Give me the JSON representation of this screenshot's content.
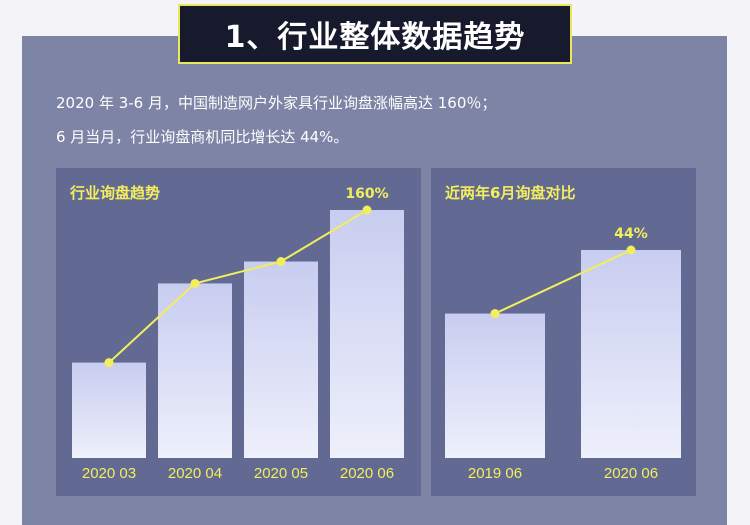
{
  "header": {
    "title": "1、行业整体数据趋势"
  },
  "intro": {
    "line1": "2020 年 3-6 月，中国制造网户外家具行业询盘涨幅高达 160％；",
    "line2": "6 月当月，行业询盘商机同比增长达 44%。"
  },
  "colors": {
    "line": "#f2ee5c",
    "bar_top": "#c8cdf0",
    "bar_bottom": "#eef0fb"
  },
  "chart_data": [
    {
      "type": "bar",
      "title": "行业询盘趋势",
      "categories": [
        "2020 03",
        "2020 04",
        "2020 05",
        "2020 06"
      ],
      "values": [
        100,
        183,
        206,
        260
      ],
      "line_overlay": true,
      "annotations": [
        {
          "category": "2020 06",
          "text": "160%"
        }
      ],
      "ylim": [
        0,
        260
      ]
    },
    {
      "type": "bar",
      "title": "近两年6月询盘对比",
      "categories": [
        "2019 06",
        "2020 06"
      ],
      "values": [
        100,
        144
      ],
      "line_overlay": true,
      "annotations": [
        {
          "category": "2020 06",
          "text": "44%"
        }
      ],
      "ylim": [
        0,
        144
      ]
    }
  ]
}
